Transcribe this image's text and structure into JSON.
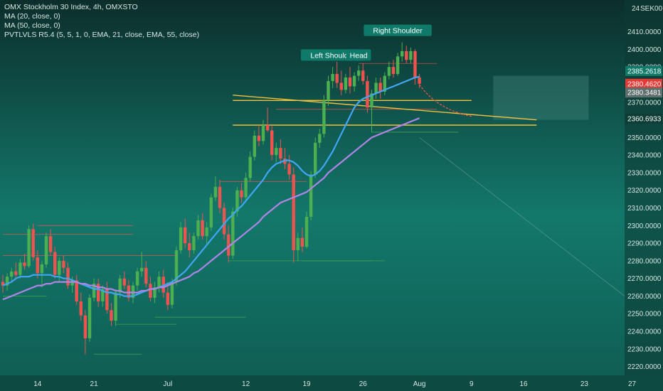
{
  "legend": {
    "symbol": "OMX Stockholm 30 Index, 4h, OMXSTO",
    "ma20": "MA (20, close, 0)",
    "ma50": "MA (50, close, 0)",
    "pivots": "PVTLVLS R5.4 (5, 5, 1, 0, EMA, 21, close, EMA, 55, close)"
  },
  "currency": "SEK",
  "top_right": "24",
  "top_right_suffix": "00",
  "colors": {
    "bull": "#4caf50",
    "bear": "#ef5350",
    "ma20": "#42a5f5",
    "ma50": "#b085e8",
    "trendline": "#f0c040",
    "label_teal": "#0f7a6a",
    "label_red": "#e53935",
    "label_grey": "#5f6f6c",
    "label_dark": "#0e3d35"
  },
  "chart_data": {
    "type": "candlestick",
    "yaxis": {
      "ticks": [
        "2410.0000",
        "2400.0000",
        "2390.0000",
        "2380.0000",
        "2370.0000",
        "2360.0000",
        "2350.0000",
        "2340.0000",
        "2330.0000",
        "2320.0000",
        "2310.0000",
        "2300.0000",
        "2290.0000",
        "2280.0000",
        "2270.0000",
        "2260.0000",
        "2250.0000",
        "2240.0000",
        "2230.0000",
        "2220.0000"
      ],
      "range": [
        2215,
        2428
      ]
    },
    "xaxis": {
      "ticks": [
        "14",
        "21",
        "Jul",
        "12",
        "19",
        "26",
        "Aug",
        "9",
        "16",
        "23",
        "27"
      ]
    },
    "candles": [
      {
        "o": 2268,
        "h": 2272,
        "l": 2262,
        "c": 2266
      },
      {
        "o": 2266,
        "h": 2273,
        "l": 2263,
        "c": 2271
      },
      {
        "o": 2271,
        "h": 2276,
        "l": 2268,
        "c": 2274
      },
      {
        "o": 2274,
        "h": 2279,
        "l": 2270,
        "c": 2272
      },
      {
        "o": 2272,
        "h": 2281,
        "l": 2270,
        "c": 2279
      },
      {
        "o": 2279,
        "h": 2284,
        "l": 2275,
        "c": 2277
      },
      {
        "o": 2277,
        "h": 2300,
        "l": 2276,
        "c": 2298
      },
      {
        "o": 2298,
        "h": 2301,
        "l": 2280,
        "c": 2282
      },
      {
        "o": 2282,
        "h": 2286,
        "l": 2270,
        "c": 2273
      },
      {
        "o": 2273,
        "h": 2280,
        "l": 2265,
        "c": 2278
      },
      {
        "o": 2278,
        "h": 2296,
        "l": 2276,
        "c": 2294
      },
      {
        "o": 2294,
        "h": 2298,
        "l": 2283,
        "c": 2285
      },
      {
        "o": 2285,
        "h": 2288,
        "l": 2270,
        "c": 2272
      },
      {
        "o": 2272,
        "h": 2282,
        "l": 2268,
        "c": 2280
      },
      {
        "o": 2280,
        "h": 2283,
        "l": 2273,
        "c": 2276
      },
      {
        "o": 2276,
        "h": 2279,
        "l": 2264,
        "c": 2266
      },
      {
        "o": 2266,
        "h": 2271,
        "l": 2262,
        "c": 2269
      },
      {
        "o": 2269,
        "h": 2272,
        "l": 2255,
        "c": 2257
      },
      {
        "o": 2257,
        "h": 2262,
        "l": 2246,
        "c": 2249
      },
      {
        "o": 2249,
        "h": 2252,
        "l": 2227,
        "c": 2236
      },
      {
        "o": 2236,
        "h": 2261,
        "l": 2234,
        "c": 2259
      },
      {
        "o": 2259,
        "h": 2270,
        "l": 2257,
        "c": 2267
      },
      {
        "o": 2267,
        "h": 2270,
        "l": 2254,
        "c": 2257
      },
      {
        "o": 2257,
        "h": 2266,
        "l": 2254,
        "c": 2264
      },
      {
        "o": 2264,
        "h": 2268,
        "l": 2250,
        "c": 2252
      },
      {
        "o": 2252,
        "h": 2256,
        "l": 2243,
        "c": 2246
      },
      {
        "o": 2246,
        "h": 2264,
        "l": 2243,
        "c": 2262
      },
      {
        "o": 2262,
        "h": 2272,
        "l": 2259,
        "c": 2270
      },
      {
        "o": 2270,
        "h": 2274,
        "l": 2264,
        "c": 2266
      },
      {
        "o": 2266,
        "h": 2269,
        "l": 2257,
        "c": 2259
      },
      {
        "o": 2259,
        "h": 2268,
        "l": 2256,
        "c": 2266
      },
      {
        "o": 2266,
        "h": 2276,
        "l": 2263,
        "c": 2274
      },
      {
        "o": 2274,
        "h": 2285,
        "l": 2271,
        "c": 2276
      },
      {
        "o": 2276,
        "h": 2280,
        "l": 2265,
        "c": 2267
      },
      {
        "o": 2267,
        "h": 2271,
        "l": 2257,
        "c": 2259
      },
      {
        "o": 2259,
        "h": 2268,
        "l": 2256,
        "c": 2265
      },
      {
        "o": 2265,
        "h": 2274,
        "l": 2262,
        "c": 2271
      },
      {
        "o": 2271,
        "h": 2275,
        "l": 2259,
        "c": 2262
      },
      {
        "o": 2262,
        "h": 2268,
        "l": 2252,
        "c": 2255
      },
      {
        "o": 2255,
        "h": 2270,
        "l": 2253,
        "c": 2268
      },
      {
        "o": 2268,
        "h": 2288,
        "l": 2266,
        "c": 2286
      },
      {
        "o": 2286,
        "h": 2302,
        "l": 2284,
        "c": 2299
      },
      {
        "o": 2299,
        "h": 2304,
        "l": 2287,
        "c": 2290
      },
      {
        "o": 2290,
        "h": 2296,
        "l": 2282,
        "c": 2286
      },
      {
        "o": 2286,
        "h": 2296,
        "l": 2284,
        "c": 2294
      },
      {
        "o": 2294,
        "h": 2306,
        "l": 2292,
        "c": 2303
      },
      {
        "o": 2303,
        "h": 2307,
        "l": 2292,
        "c": 2294
      },
      {
        "o": 2294,
        "h": 2302,
        "l": 2289,
        "c": 2299
      },
      {
        "o": 2299,
        "h": 2318,
        "l": 2297,
        "c": 2316
      },
      {
        "o": 2316,
        "h": 2328,
        "l": 2314,
        "c": 2322
      },
      {
        "o": 2322,
        "h": 2326,
        "l": 2307,
        "c": 2310
      },
      {
        "o": 2310,
        "h": 2313,
        "l": 2292,
        "c": 2295
      },
      {
        "o": 2295,
        "h": 2300,
        "l": 2279,
        "c": 2283
      },
      {
        "o": 2283,
        "h": 2310,
        "l": 2281,
        "c": 2308
      },
      {
        "o": 2308,
        "h": 2322,
        "l": 2305,
        "c": 2320
      },
      {
        "o": 2320,
        "h": 2324,
        "l": 2313,
        "c": 2316
      },
      {
        "o": 2316,
        "h": 2330,
        "l": 2314,
        "c": 2327
      },
      {
        "o": 2327,
        "h": 2342,
        "l": 2325,
        "c": 2339
      },
      {
        "o": 2339,
        "h": 2354,
        "l": 2337,
        "c": 2351
      },
      {
        "o": 2351,
        "h": 2357,
        "l": 2345,
        "c": 2348
      },
      {
        "o": 2348,
        "h": 2360,
        "l": 2346,
        "c": 2357
      },
      {
        "o": 2357,
        "h": 2367,
        "l": 2353,
        "c": 2354
      },
      {
        "o": 2354,
        "h": 2357,
        "l": 2337,
        "c": 2340
      },
      {
        "o": 2340,
        "h": 2347,
        "l": 2336,
        "c": 2344
      },
      {
        "o": 2344,
        "h": 2349,
        "l": 2335,
        "c": 2338
      },
      {
        "o": 2338,
        "h": 2344,
        "l": 2332,
        "c": 2335
      },
      {
        "o": 2335,
        "h": 2340,
        "l": 2326,
        "c": 2329
      },
      {
        "o": 2329,
        "h": 2333,
        "l": 2279,
        "c": 2286
      },
      {
        "o": 2286,
        "h": 2296,
        "l": 2280,
        "c": 2293
      },
      {
        "o": 2293,
        "h": 2299,
        "l": 2285,
        "c": 2288
      },
      {
        "o": 2288,
        "h": 2308,
        "l": 2287,
        "c": 2305
      },
      {
        "o": 2305,
        "h": 2331,
        "l": 2303,
        "c": 2329
      },
      {
        "o": 2329,
        "h": 2350,
        "l": 2327,
        "c": 2347
      },
      {
        "o": 2347,
        "h": 2355,
        "l": 2344,
        "c": 2352
      },
      {
        "o": 2352,
        "h": 2374,
        "l": 2350,
        "c": 2371
      },
      {
        "o": 2371,
        "h": 2385,
        "l": 2368,
        "c": 2382
      },
      {
        "o": 2382,
        "h": 2390,
        "l": 2378,
        "c": 2386
      },
      {
        "o": 2386,
        "h": 2393,
        "l": 2378,
        "c": 2381
      },
      {
        "o": 2381,
        "h": 2388,
        "l": 2374,
        "c": 2377
      },
      {
        "o": 2377,
        "h": 2386,
        "l": 2375,
        "c": 2384
      },
      {
        "o": 2384,
        "h": 2390,
        "l": 2375,
        "c": 2379
      },
      {
        "o": 2379,
        "h": 2387,
        "l": 2376,
        "c": 2385
      },
      {
        "o": 2385,
        "h": 2391,
        "l": 2382,
        "c": 2388
      },
      {
        "o": 2388,
        "h": 2392,
        "l": 2380,
        "c": 2382
      },
      {
        "o": 2382,
        "h": 2385,
        "l": 2364,
        "c": 2367
      },
      {
        "o": 2367,
        "h": 2377,
        "l": 2353,
        "c": 2375
      },
      {
        "o": 2375,
        "h": 2384,
        "l": 2372,
        "c": 2381
      },
      {
        "o": 2381,
        "h": 2384,
        "l": 2372,
        "c": 2376
      },
      {
        "o": 2376,
        "h": 2387,
        "l": 2374,
        "c": 2385
      },
      {
        "o": 2385,
        "h": 2393,
        "l": 2383,
        "c": 2390
      },
      {
        "o": 2390,
        "h": 2394,
        "l": 2384,
        "c": 2386
      },
      {
        "o": 2386,
        "h": 2398,
        "l": 2385,
        "c": 2396
      },
      {
        "o": 2396,
        "h": 2404,
        "l": 2393,
        "c": 2399
      },
      {
        "o": 2399,
        "h": 2402,
        "l": 2392,
        "c": 2394
      },
      {
        "o": 2394,
        "h": 2401,
        "l": 2392,
        "c": 2399
      },
      {
        "o": 2399,
        "h": 2400,
        "l": 2380,
        "c": 2384
      },
      {
        "o": 2384,
        "h": 2386,
        "l": 2378,
        "c": 2380.46
      }
    ],
    "ma20": [
      2266,
      2267,
      2268,
      2270,
      2271,
      2271,
      2271,
      2272,
      2272,
      2272,
      2272,
      2272,
      2271,
      2271,
      2270,
      2270,
      2269,
      2268,
      2267,
      2266,
      2265,
      2264,
      2264,
      2263,
      2262,
      2262,
      2261,
      2261,
      2260,
      2260,
      2260,
      2261,
      2262,
      2263,
      2264,
      2264,
      2265,
      2266,
      2267,
      2268,
      2270,
      2272,
      2274,
      2277,
      2280,
      2283,
      2286,
      2289,
      2292,
      2295,
      2298,
      2301,
      2304,
      2306,
      2309,
      2311,
      2314,
      2317,
      2320,
      2323,
      2326,
      2330,
      2333,
      2335,
      2336,
      2337,
      2337,
      2336,
      2334,
      2331,
      2329,
      2328,
      2329,
      2331,
      2334,
      2338,
      2342,
      2347,
      2352,
      2357,
      2362,
      2367,
      2370,
      2372,
      2373,
      2374,
      2375,
      2376,
      2377,
      2378,
      2379,
      2380,
      2381,
      2382,
      2383,
      2384,
      2384.5
    ],
    "ma50": [
      2258,
      2259,
      2260,
      2261,
      2262,
      2263,
      2264,
      2265,
      2266,
      2266,
      2267,
      2267,
      2268,
      2268,
      2268,
      2268,
      2268,
      2268,
      2267,
      2267,
      2266,
      2266,
      2265,
      2265,
      2264,
      2264,
      2263,
      2263,
      2262,
      2262,
      2262,
      2262,
      2263,
      2263,
      2264,
      2264,
      2265,
      2265,
      2266,
      2267,
      2268,
      2269,
      2270,
      2271,
      2273,
      2274,
      2276,
      2278,
      2280,
      2282,
      2284,
      2286,
      2288,
      2290,
      2292,
      2294,
      2296,
      2298,
      2300,
      2302,
      2305,
      2307,
      2309,
      2311,
      2313,
      2314,
      2315,
      2316,
      2317,
      2318,
      2319,
      2321,
      2323,
      2325,
      2327,
      2330,
      2332,
      2334,
      2336,
      2338,
      2340,
      2342,
      2344,
      2346,
      2348,
      2350,
      2351,
      2352,
      2353,
      2354,
      2355,
      2356,
      2357,
      2358,
      2359,
      2360,
      2361
    ],
    "trendlines": [
      {
        "from": [
          0,
          2374
        ],
        "to": [
          116,
          2360
        ]
      },
      {
        "from": [
          0,
          2371
        ],
        "to": [
          45,
          2371
        ]
      },
      {
        "from": [
          0,
          2357
        ],
        "to": [
          116,
          2357
        ]
      }
    ],
    "price_labels": [
      {
        "text": "2385.2618",
        "value": 2385.2618,
        "color": "label_teal"
      },
      {
        "text": "2380.4620",
        "value": 2380.462,
        "color": "label_red"
      },
      {
        "text": "2380.3481",
        "value": 2380.3481,
        "color": "label_grey"
      },
      {
        "text": "2360.6933",
        "value": 2360.6933,
        "color": "label_dark"
      }
    ],
    "annotations": [
      {
        "text": "Left Shoulder",
        "candle": 76,
        "value": 2396
      },
      {
        "text": "Head",
        "candle": 82,
        "value": 2396
      },
      {
        "text": "Right Shoulder",
        "candle": 91,
        "value": 2410
      }
    ]
  }
}
